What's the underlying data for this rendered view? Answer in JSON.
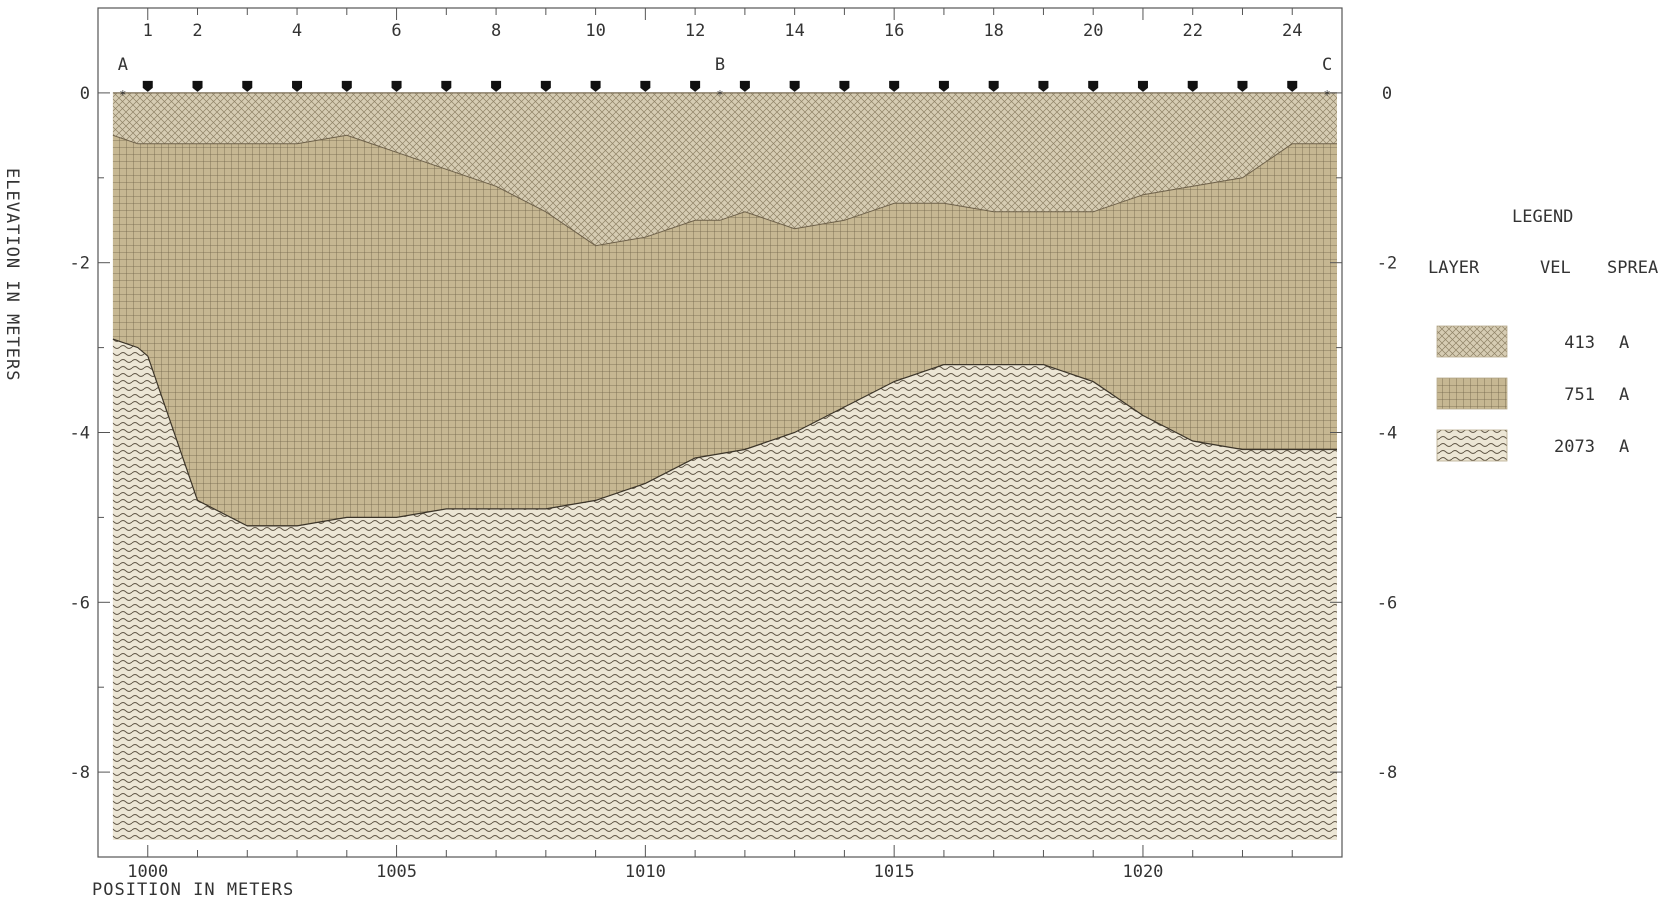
{
  "chart_data": {
    "type": "area",
    "title": "",
    "xlabel": "POSITION IN METERS",
    "ylabel": "ELEVATION IN METERS",
    "xlim": [
      999.0,
      1024.0
    ],
    "ylim": [
      -9.0,
      1.0
    ],
    "x_ticks": [
      1000,
      1005,
      1010,
      1015,
      1020
    ],
    "y_ticks": [
      0,
      -2,
      -4,
      -6,
      -8
    ],
    "grid": false,
    "geophones": {
      "labels": [
        "1",
        "2",
        "4",
        "6",
        "8",
        "10",
        "12",
        "14",
        "16",
        "18",
        "20",
        "22",
        "24"
      ],
      "label_positions": [
        1000,
        1001,
        1003,
        1005,
        1007,
        1009,
        1011,
        1013,
        1015,
        1017,
        1019,
        1021,
        1023
      ],
      "positions": [
        1000,
        1001,
        1002,
        1003,
        1004,
        1005,
        1006,
        1007,
        1008,
        1009,
        1010,
        1011,
        1012,
        1013,
        1014,
        1015,
        1016,
        1017,
        1018,
        1019,
        1020,
        1021,
        1022,
        1023
      ]
    },
    "shot_points": [
      {
        "label": "A",
        "x": 999.5
      },
      {
        "label": "B",
        "x": 1011.5
      },
      {
        "label": "C",
        "x": 1023.7
      }
    ],
    "surface": {
      "x": [
        999.3,
        1023.9
      ],
      "y": [
        0,
        0
      ]
    },
    "interface_1": {
      "x": [
        999.3,
        999.8,
        1000,
        1001,
        1002,
        1003,
        1004,
        1005,
        1006,
        1007,
        1008,
        1009,
        1010,
        1011,
        1011.5,
        1012,
        1013,
        1014,
        1015,
        1016,
        1017,
        1018,
        1019,
        1020,
        1021,
        1022,
        1023,
        1023.9
      ],
      "y": [
        -0.5,
        -0.6,
        -0.6,
        -0.6,
        -0.6,
        -0.6,
        -0.5,
        -0.7,
        -0.9,
        -1.1,
        -1.4,
        -1.8,
        -1.7,
        -1.5,
        -1.5,
        -1.4,
        -1.6,
        -1.5,
        -1.3,
        -1.3,
        -1.4,
        -1.4,
        -1.4,
        -1.2,
        -1.1,
        -1.0,
        -0.6,
        -0.6
      ]
    },
    "interface_2": {
      "x": [
        999.3,
        999.8,
        1000,
        1001,
        1002,
        1003,
        1004,
        1005,
        1006,
        1007,
        1008,
        1009,
        1010,
        1011,
        1012,
        1013,
        1014,
        1015,
        1016,
        1017,
        1018,
        1019,
        1020,
        1021,
        1022,
        1023,
        1023.9
      ],
      "y": [
        -2.9,
        -3.0,
        -3.1,
        -4.8,
        -5.1,
        -5.1,
        -5.0,
        -5.0,
        -4.9,
        -4.9,
        -4.9,
        -4.8,
        -4.6,
        -4.3,
        -4.2,
        -4.0,
        -3.7,
        -3.4,
        -3.2,
        -3.2,
        -3.2,
        -3.4,
        -3.8,
        -4.1,
        -4.2,
        -4.2,
        -4.2
      ]
    },
    "bottom": -8.8,
    "series": [
      {
        "name": "413",
        "layer": 1,
        "spread": "A",
        "pattern": "crosshatch",
        "color": "#d3c9b0"
      },
      {
        "name": "751",
        "layer": 2,
        "spread": "A",
        "pattern": "grid",
        "color": "#c3b48f"
      },
      {
        "name": "2073",
        "layer": 3,
        "spread": "A",
        "pattern": "waves",
        "color": "#e8e1ce"
      }
    ],
    "legend": {
      "title": "LEGEND",
      "placement": "right",
      "headers": [
        "LAYER",
        "VEL",
        "SPREA"
      ]
    }
  }
}
